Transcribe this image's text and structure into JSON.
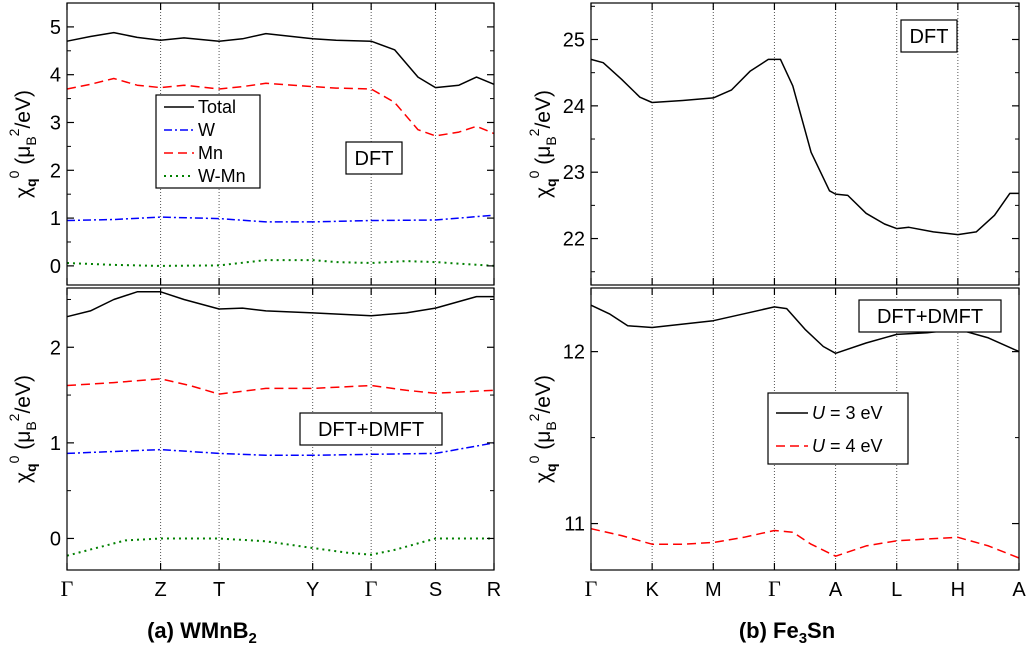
{
  "captions": {
    "a": {
      "prefix": "(a) WMnB",
      "sub": "2",
      "suffix": ""
    },
    "b": {
      "prefix": "(b) Fe",
      "sub": "3",
      "suffix": "Sn"
    }
  },
  "colors": {
    "total": "#000000",
    "w": "#0000ff",
    "mn": "#ff0000",
    "wmn": "#008000"
  },
  "chart_data": [
    {
      "id": "a_top",
      "type": "line",
      "box_label": "DFT",
      "ylabel": {
        "chi": "χ",
        "chi_sub": "q",
        "sup": "0",
        "unit_open": "(μ",
        "unit_sub": "B",
        "unit_sup": "2",
        "unit_close": "/eV)"
      },
      "ylim": [
        -0.4,
        5.5
      ],
      "yticks": [
        0,
        1,
        2,
        3,
        4,
        5
      ],
      "xlim": [
        0,
        7.3
      ],
      "kpoints": [
        {
          "label": "Γ",
          "x": 0,
          "symbol": true
        },
        {
          "label": "Z",
          "x": 1.6,
          "symbol": false
        },
        {
          "label": "T",
          "x": 2.6,
          "symbol": false
        },
        {
          "label": "Y",
          "x": 4.2,
          "symbol": false
        },
        {
          "label": "Γ",
          "x": 5.2,
          "symbol": true
        },
        {
          "label": "S",
          "x": 6.3,
          "symbol": false
        },
        {
          "label": "R",
          "x": 7.3,
          "symbol": false
        }
      ],
      "legend": [
        "Total",
        "W",
        "Mn",
        "W-Mn"
      ],
      "series": [
        {
          "name": "Total",
          "color": "#000000",
          "dash": "none",
          "x": [
            0,
            0.4,
            0.8,
            1.2,
            1.6,
            2.0,
            2.6,
            3.0,
            3.4,
            4.2,
            4.6,
            5.2,
            5.6,
            6.0,
            6.3,
            6.7,
            7.0,
            7.3
          ],
          "y": [
            4.7,
            4.8,
            4.88,
            4.78,
            4.72,
            4.77,
            4.7,
            4.75,
            4.86,
            4.75,
            4.72,
            4.7,
            4.52,
            3.95,
            3.73,
            3.78,
            3.95,
            3.8
          ]
        },
        {
          "name": "W",
          "color": "#0000ff",
          "dash": "8,3,2,3",
          "x": [
            0,
            0.8,
            1.6,
            2.6,
            3.4,
            4.2,
            5.2,
            6.3,
            7.3
          ],
          "y": [
            0.95,
            0.97,
            1.02,
            0.99,
            0.92,
            0.92,
            0.95,
            0.96,
            1.06
          ]
        },
        {
          "name": "Mn",
          "color": "#ff0000",
          "dash": "9,5",
          "x": [
            0,
            0.4,
            0.8,
            1.2,
            1.6,
            2.0,
            2.6,
            3.0,
            3.4,
            4.2,
            4.6,
            5.2,
            5.6,
            6.0,
            6.3,
            6.7,
            7.0,
            7.3
          ],
          "y": [
            3.7,
            3.8,
            3.92,
            3.78,
            3.73,
            3.78,
            3.7,
            3.75,
            3.82,
            3.75,
            3.72,
            3.7,
            3.42,
            2.85,
            2.72,
            2.8,
            2.92,
            2.77
          ]
        },
        {
          "name": "W-Mn",
          "color": "#008000",
          "dash": "2,4",
          "x": [
            0,
            0.8,
            1.6,
            2.6,
            3.4,
            4.2,
            4.6,
            5.2,
            5.8,
            6.3,
            7.3
          ],
          "y": [
            0.06,
            0.02,
            0.0,
            0.01,
            0.12,
            0.12,
            0.08,
            0.06,
            0.1,
            0.08,
            0.0
          ]
        }
      ]
    },
    {
      "id": "a_bottom",
      "type": "line",
      "box_label": "DFT+DMFT",
      "ylabel": {
        "chi": "χ",
        "chi_sub": "q",
        "sup": "0",
        "unit_open": "(μ",
        "unit_sub": "B",
        "unit_sup": "2",
        "unit_close": "/eV)"
      },
      "ylim": [
        -0.33,
        2.62
      ],
      "yticks": [
        0,
        1,
        2
      ],
      "xlim": [
        0,
        7.3
      ],
      "kpoints": [
        {
          "label": "Γ",
          "x": 0,
          "symbol": true
        },
        {
          "label": "Z",
          "x": 1.6,
          "symbol": false
        },
        {
          "label": "T",
          "x": 2.6,
          "symbol": false
        },
        {
          "label": "Y",
          "x": 4.2,
          "symbol": false
        },
        {
          "label": "Γ",
          "x": 5.2,
          "symbol": true
        },
        {
          "label": "S",
          "x": 6.3,
          "symbol": false
        },
        {
          "label": "R",
          "x": 7.3,
          "symbol": false
        }
      ],
      "series": [
        {
          "name": "Total",
          "color": "#000000",
          "dash": "none",
          "x": [
            0,
            0.4,
            0.8,
            1.2,
            1.6,
            2.0,
            2.6,
            3.0,
            3.4,
            4.2,
            5.2,
            5.8,
            6.3,
            7.0,
            7.3
          ],
          "y": [
            2.32,
            2.38,
            2.5,
            2.58,
            2.58,
            2.5,
            2.4,
            2.41,
            2.38,
            2.36,
            2.33,
            2.36,
            2.41,
            2.53,
            2.53
          ]
        },
        {
          "name": "W",
          "color": "#0000ff",
          "dash": "8,3,2,3",
          "x": [
            0,
            0.8,
            1.6,
            2.6,
            3.4,
            4.2,
            5.2,
            6.3,
            7.3
          ],
          "y": [
            0.89,
            0.91,
            0.93,
            0.89,
            0.87,
            0.87,
            0.88,
            0.89,
            1.0
          ]
        },
        {
          "name": "Mn",
          "color": "#ff0000",
          "dash": "9,5",
          "x": [
            0,
            0.8,
            1.6,
            2.1,
            2.6,
            3.4,
            4.2,
            5.2,
            5.8,
            6.3,
            7.3
          ],
          "y": [
            1.6,
            1.63,
            1.67,
            1.6,
            1.51,
            1.57,
            1.57,
            1.6,
            1.55,
            1.52,
            1.55
          ]
        },
        {
          "name": "W-Mn",
          "color": "#008000",
          "dash": "2,4",
          "x": [
            0,
            0.5,
            1.0,
            1.6,
            2.6,
            3.4,
            4.2,
            4.8,
            5.2,
            5.6,
            6.3,
            7.3
          ],
          "y": [
            -0.18,
            -0.1,
            -0.02,
            0.0,
            0.0,
            -0.03,
            -0.1,
            -0.15,
            -0.17,
            -0.12,
            0.0,
            0.0
          ]
        }
      ]
    },
    {
      "id": "b_top",
      "type": "line",
      "box_label": "DFT",
      "ylabel": {
        "chi": "χ",
        "chi_sub": "q",
        "sup": "0",
        "unit_open": "(μ",
        "unit_sub": "B",
        "unit_sup": "2",
        "unit_close": "/eV)"
      },
      "ylim": [
        21.3,
        25.55
      ],
      "yticks": [
        22,
        23,
        24,
        25
      ],
      "xlim": [
        0,
        7
      ],
      "kpoints": [
        {
          "label": "Γ",
          "x": 0,
          "symbol": true
        },
        {
          "label": "K",
          "x": 1,
          "symbol": false
        },
        {
          "label": "M",
          "x": 2,
          "symbol": false
        },
        {
          "label": "Γ",
          "x": 3,
          "symbol": true
        },
        {
          "label": "A",
          "x": 4,
          "symbol": false
        },
        {
          "label": "L",
          "x": 5,
          "symbol": false
        },
        {
          "label": "H",
          "x": 6,
          "symbol": false
        },
        {
          "label": "A",
          "x": 7,
          "symbol": false
        }
      ],
      "series": [
        {
          "name": "DFT",
          "color": "#000000",
          "dash": "none",
          "x": [
            0,
            0.2,
            0.5,
            0.8,
            1.0,
            1.5,
            2.0,
            2.3,
            2.6,
            2.9,
            3.1,
            3.3,
            3.6,
            3.9,
            4.0,
            4.2,
            4.5,
            4.8,
            5.0,
            5.2,
            5.6,
            6.0,
            6.3,
            6.6,
            6.85,
            7.0
          ],
          "y": [
            24.7,
            24.65,
            24.4,
            24.13,
            24.05,
            24.08,
            24.12,
            24.24,
            24.52,
            24.7,
            24.7,
            24.3,
            23.3,
            22.72,
            22.67,
            22.65,
            22.38,
            22.22,
            22.15,
            22.17,
            22.1,
            22.06,
            22.1,
            22.35,
            22.68,
            22.68
          ]
        }
      ]
    },
    {
      "id": "b_bottom",
      "type": "line",
      "box_label": "DFT+DMFT",
      "ylabel": {
        "chi": "χ",
        "chi_sub": "q",
        "sup": "0",
        "unit_open": "(μ",
        "unit_sub": "B",
        "unit_sup": "2",
        "unit_close": "/eV)"
      },
      "ylim": [
        10.73,
        12.37
      ],
      "yticks": [
        11,
        12
      ],
      "xlim": [
        0,
        7
      ],
      "kpoints": [
        {
          "label": "Γ",
          "x": 0,
          "symbol": true
        },
        {
          "label": "K",
          "x": 1,
          "symbol": false
        },
        {
          "label": "M",
          "x": 2,
          "symbol": false
        },
        {
          "label": "Γ",
          "x": 3,
          "symbol": true
        },
        {
          "label": "A",
          "x": 4,
          "symbol": false
        },
        {
          "label": "L",
          "x": 5,
          "symbol": false
        },
        {
          "label": "H",
          "x": 6,
          "symbol": false
        },
        {
          "label": "A",
          "x": 7,
          "symbol": false
        }
      ],
      "legend": [
        {
          "var": "U",
          "rest": " = 3 eV"
        },
        {
          "var": "U",
          "rest": " = 4 eV"
        }
      ],
      "series": [
        {
          "name": "U = 3 eV",
          "color": "#000000",
          "dash": "none",
          "x": [
            0,
            0.3,
            0.6,
            1.0,
            1.5,
            2.0,
            2.5,
            3.0,
            3.2,
            3.5,
            3.8,
            4.0,
            4.5,
            5.0,
            5.5,
            6.0,
            6.5,
            7.0
          ],
          "y": [
            12.27,
            12.22,
            12.15,
            12.14,
            12.16,
            12.18,
            12.22,
            12.26,
            12.25,
            12.13,
            12.03,
            11.99,
            12.05,
            12.1,
            12.11,
            12.13,
            12.08,
            12.0
          ]
        },
        {
          "name": "U = 4 eV",
          "color": "#ff0000",
          "dash": "9,5",
          "x": [
            0,
            0.5,
            1.0,
            1.5,
            2.0,
            2.5,
            3.0,
            3.3,
            3.6,
            4.0,
            4.5,
            5.0,
            5.5,
            6.0,
            6.5,
            7.0
          ],
          "y": [
            10.97,
            10.93,
            10.88,
            10.88,
            10.89,
            10.92,
            10.96,
            10.95,
            10.88,
            10.81,
            10.87,
            10.9,
            10.91,
            10.92,
            10.87,
            10.8
          ]
        }
      ]
    }
  ]
}
